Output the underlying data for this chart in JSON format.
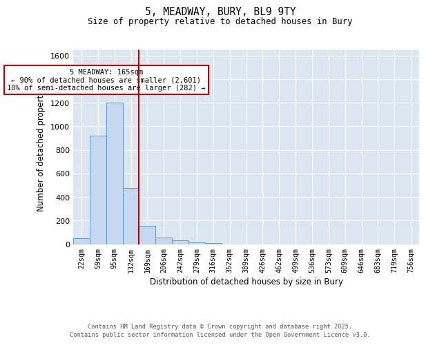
{
  "title_line1": "5, MEADWAY, BURY, BL9 9TY",
  "title_line2": "Size of property relative to detached houses in Bury",
  "xlabel": "Distribution of detached houses by size in Bury",
  "ylabel": "Number of detached properties",
  "bar_labels": [
    "22sqm",
    "59sqm",
    "95sqm",
    "132sqm",
    "169sqm",
    "206sqm",
    "242sqm",
    "279sqm",
    "316sqm",
    "352sqm",
    "389sqm",
    "426sqm",
    "462sqm",
    "499sqm",
    "536sqm",
    "573sqm",
    "609sqm",
    "646sqm",
    "683sqm",
    "719sqm",
    "756sqm"
  ],
  "bar_values": [
    50,
    920,
    1200,
    475,
    155,
    55,
    30,
    15,
    10,
    0,
    0,
    0,
    0,
    0,
    0,
    0,
    0,
    0,
    0,
    0,
    0
  ],
  "bar_color": "#c5d8f0",
  "bar_edge_color": "#5b9bd5",
  "plot_bg_color": "#dce6f1",
  "vline_color": "#c00000",
  "annotation_text": "5 MEADWAY: 165sqm\n← 90% of detached houses are smaller (2,601)\n10% of semi-detached houses are larger (282) →",
  "annotation_box_color": "#c00000",
  "ylim": [
    0,
    1650
  ],
  "yticks": [
    0,
    200,
    400,
    600,
    800,
    1000,
    1200,
    1400,
    1600
  ],
  "footer_line1": "Contains HM Land Registry data © Crown copyright and database right 2025.",
  "footer_line2": "Contains public sector information licensed under the Open Government Licence v3.0."
}
